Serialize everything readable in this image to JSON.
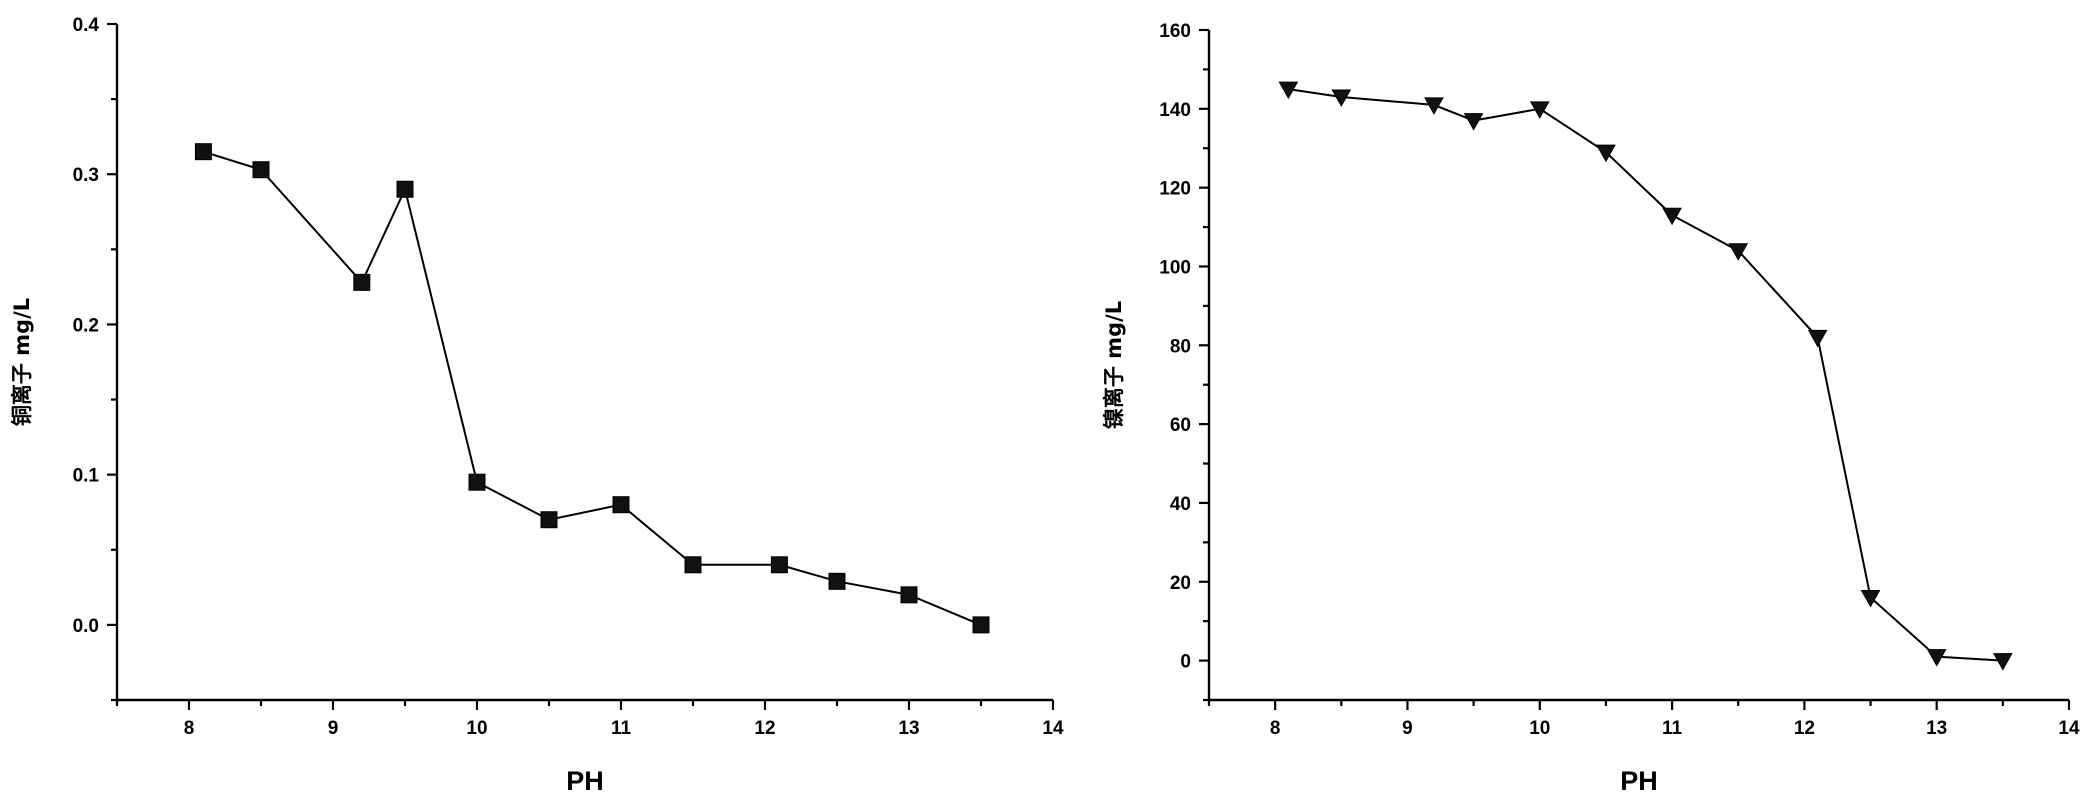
{
  "chart_data": [
    {
      "type": "line",
      "title": "",
      "xlabel": "PH",
      "ylabel": "铜离子 mg/L",
      "xlim": [
        7.5,
        14
      ],
      "ylim": [
        -0.05,
        0.4
      ],
      "xticks": [
        "8",
        "9",
        "10",
        "11",
        "12",
        "13",
        "14"
      ],
      "yticks": [
        "0.0",
        "0.1",
        "0.2",
        "0.3",
        "0.4"
      ],
      "marker": "square",
      "series": [
        {
          "x": [
            8.1,
            8.5,
            9.2,
            9.5,
            10.0,
            10.5,
            11.0,
            11.5,
            12.1,
            12.5,
            13.0,
            13.5
          ],
          "values": [
            0.315,
            0.303,
            0.228,
            0.29,
            0.095,
            0.07,
            0.08,
            0.04,
            0.04,
            0.029,
            0.02,
            0.0
          ]
        }
      ]
    },
    {
      "type": "line",
      "title": "",
      "xlabel": "PH",
      "ylabel": "镍离子 mg/L",
      "xlim": [
        7.5,
        14
      ],
      "ylim": [
        -10,
        160
      ],
      "xticks": [
        "8",
        "9",
        "10",
        "11",
        "12",
        "13",
        "14"
      ],
      "yticks": [
        "0",
        "20",
        "40",
        "60",
        "80",
        "100",
        "120",
        "140",
        "160"
      ],
      "marker": "triangle-down",
      "series": [
        {
          "x": [
            8.1,
            8.5,
            9.2,
            9.5,
            10.0,
            10.5,
            11.0,
            11.5,
            12.1,
            12.5,
            13.0,
            13.5
          ],
          "values": [
            145,
            143,
            141,
            137,
            140,
            129,
            113,
            104,
            82,
            16,
            1,
            0
          ]
        }
      ]
    }
  ]
}
